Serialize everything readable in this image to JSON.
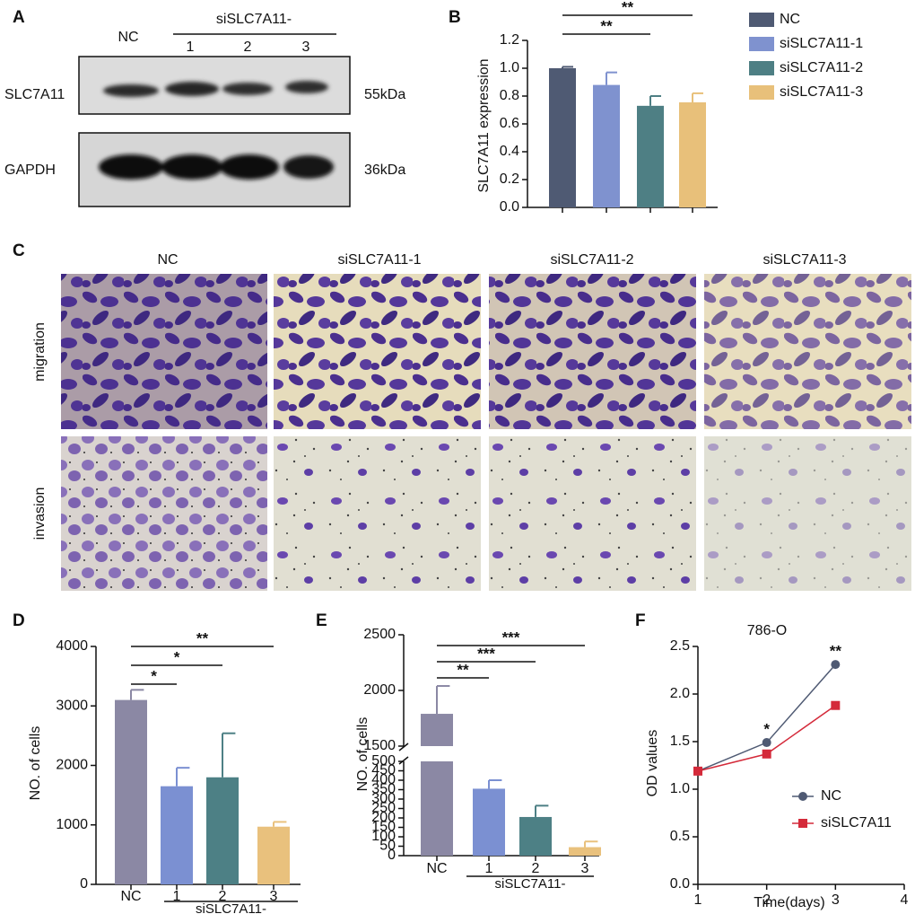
{
  "blot": {
    "panel": "A",
    "control": "NC",
    "group_label": "siSLC7A11-",
    "lanes": [
      "1",
      "2",
      "3"
    ],
    "rows": [
      {
        "protein": "SLC7A11",
        "size": "55kDa"
      },
      {
        "protein": "GAPDH",
        "size": "36kDa"
      }
    ]
  },
  "micrographs": {
    "panel": "C",
    "columns": [
      "NC",
      "siSLC7A11-1",
      "siSLC7A11-2",
      "siSLC7A11-3"
    ],
    "rows": [
      "migration",
      "invasion"
    ]
  },
  "chart_data": [
    {
      "panel": "B",
      "type": "bar",
      "ylabel": "SLC7A11 expression",
      "categories": [
        "NC",
        "siSLC7A11-1",
        "siSLC7A11-2",
        "siSLC7A11-3"
      ],
      "values": [
        1.0,
        0.88,
        0.73,
        0.755
      ],
      "errors": [
        0.01,
        0.09,
        0.07,
        0.065
      ],
      "colors": [
        "#4f5a73",
        "#7f92cf",
        "#4e7f84",
        "#e8c07a"
      ],
      "ylim": [
        0,
        1.2
      ],
      "yticks": [
        {
          "value": 0,
          "label": "0.0"
        },
        0.2,
        0.4,
        0.6,
        0.8,
        {
          "value": 1,
          "label": "1.0"
        },
        1.2
      ],
      "legend": true,
      "significance": [
        {
          "from": 0,
          "to": 2,
          "label": "**"
        },
        {
          "from": 0,
          "to": 3,
          "label": "**"
        }
      ]
    },
    {
      "panel": "D",
      "type": "bar",
      "ylabel": "NO. of cells",
      "categories": [
        "NC",
        "1",
        "2",
        "3"
      ],
      "group_label": "siSLC7A11-",
      "values": [
        3100,
        1650,
        1800,
        970
      ],
      "errors": [
        170,
        310,
        740,
        80
      ],
      "colors": [
        "#8b88a4",
        "#7b90d2",
        "#4d8085",
        "#e9c17d"
      ],
      "ylim": [
        0,
        4000
      ],
      "yticks": [
        0,
        1000,
        2000,
        3000,
        4000
      ],
      "significance": [
        {
          "from": 0,
          "to": 1,
          "label": "*"
        },
        {
          "from": 0,
          "to": 2,
          "label": "*"
        },
        {
          "from": 0,
          "to": 3,
          "label": "**"
        }
      ]
    },
    {
      "panel": "E",
      "type": "bar",
      "ylabel": "NO. of cells",
      "categories": [
        "NC",
        "1",
        "2",
        "3"
      ],
      "group_label": "siSLC7A11-",
      "values": [
        1790,
        355,
        205,
        45
      ],
      "errors": [
        250,
        45,
        60,
        30
      ],
      "colors": [
        "#8b88a4",
        "#7b90d2",
        "#4d8085",
        "#e9c17d"
      ],
      "ylim": [
        0,
        2500
      ],
      "ybreak": [
        500,
        1500
      ],
      "yticks": [
        0,
        50,
        100,
        150,
        200,
        250,
        300,
        350,
        400,
        450,
        500,
        1500,
        2000,
        2500
      ],
      "significance": [
        {
          "from": 0,
          "to": 1,
          "label": "**"
        },
        {
          "from": 0,
          "to": 2,
          "label": "***"
        },
        {
          "from": 0,
          "to": 3,
          "label": "***"
        }
      ]
    },
    {
      "panel": "F",
      "type": "line",
      "title": "786-O",
      "xlabel": "Time(days)",
      "ylabel": "OD values",
      "x": [
        1,
        2,
        3
      ],
      "xlim": [
        1,
        4
      ],
      "xticks": [
        1,
        2,
        3,
        4
      ],
      "ylim": [
        0,
        2.5
      ],
      "yticks": [
        {
          "value": 0,
          "label": "0.0"
        },
        0.5,
        {
          "value": 1,
          "label": "1.0"
        },
        1.5,
        {
          "value": 2,
          "label": "2.0"
        },
        2.5
      ],
      "series": [
        {
          "name": "NC",
          "color": "#4f5a73",
          "marker": "circle",
          "values": [
            1.19,
            1.49,
            2.31
          ]
        },
        {
          "name": "siSLC7A11",
          "color": "#d42a3a",
          "marker": "square",
          "values": [
            1.19,
            1.37,
            1.88
          ]
        }
      ],
      "annotations": [
        {
          "x": 2,
          "label": "*"
        },
        {
          "x": 3,
          "label": "**"
        }
      ]
    }
  ]
}
